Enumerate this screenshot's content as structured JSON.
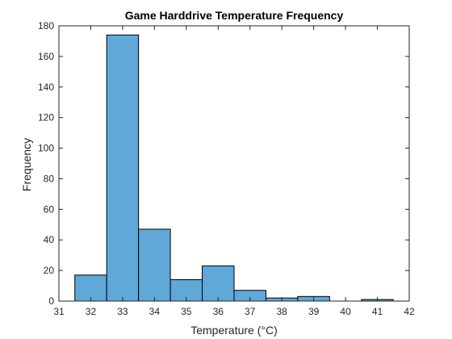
{
  "chart_data": {
    "type": "bar",
    "title": "Game Harddrive Temperature Frequency",
    "xlabel": "Temperature (°C)",
    "ylabel": "Frequency",
    "xlim": [
      31,
      42
    ],
    "ylim": [
      0,
      180
    ],
    "x_ticks": [
      31,
      32,
      33,
      34,
      35,
      36,
      37,
      38,
      39,
      40,
      41,
      42
    ],
    "y_ticks": [
      0,
      20,
      40,
      60,
      80,
      100,
      120,
      140,
      160,
      180
    ],
    "bins": [
      {
        "start": 31.5,
        "end": 32.5,
        "value": 17
      },
      {
        "start": 32.5,
        "end": 33.5,
        "value": 174
      },
      {
        "start": 33.5,
        "end": 34.5,
        "value": 47
      },
      {
        "start": 34.5,
        "end": 35.5,
        "value": 14
      },
      {
        "start": 35.5,
        "end": 36.5,
        "value": 23
      },
      {
        "start": 36.5,
        "end": 37.5,
        "value": 7
      },
      {
        "start": 37.5,
        "end": 38.5,
        "value": 2
      },
      {
        "start": 38.5,
        "end": 39.5,
        "value": 3
      },
      {
        "start": 39.5,
        "end": 40.5,
        "value": 0
      },
      {
        "start": 40.5,
        "end": 41.5,
        "value": 1
      }
    ],
    "bar_color": "#5fa8d8",
    "bar_edge_color": "#000000",
    "grid": false,
    "box": true
  }
}
